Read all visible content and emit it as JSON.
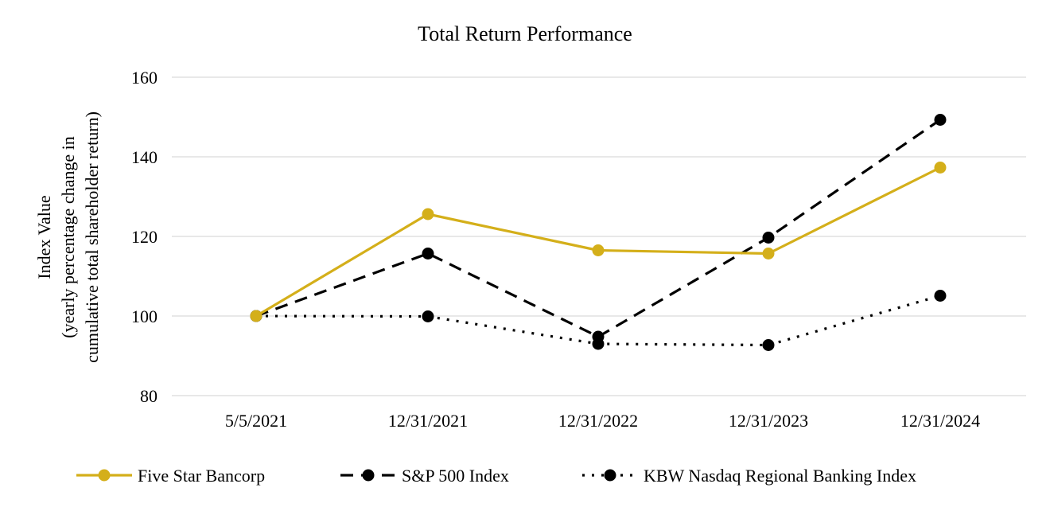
{
  "chart_data": {
    "type": "line",
    "title": "Total Return Performance",
    "ylabel_lines": [
      "Index Value",
      "(yearly percentage change in",
      "cumulative total shareholder return)"
    ],
    "categories": [
      "5/5/2021",
      "12/31/2021",
      "12/31/2022",
      "12/31/2023",
      "12/31/2024"
    ],
    "ylim": [
      80,
      160
    ],
    "yticks": [
      80,
      100,
      120,
      140,
      160
    ],
    "grid": "horizontal",
    "legend_position": "bottom",
    "series": [
      {
        "name": "Five Star Bancorp",
        "values": [
          100.0,
          125.6,
          116.5,
          115.7,
          137.3
        ],
        "color": "#d4af1a",
        "line_style": "solid"
      },
      {
        "name": "S&P 500 Index",
        "values": [
          100.0,
          115.7,
          94.8,
          119.7,
          149.3
        ],
        "color": "#000000",
        "line_style": "dashed"
      },
      {
        "name": "KBW Nasdaq Regional Banking Index",
        "values": [
          100.0,
          99.9,
          93.0,
          92.7,
          105.1
        ],
        "color": "#000000",
        "line_style": "dotted"
      }
    ]
  }
}
